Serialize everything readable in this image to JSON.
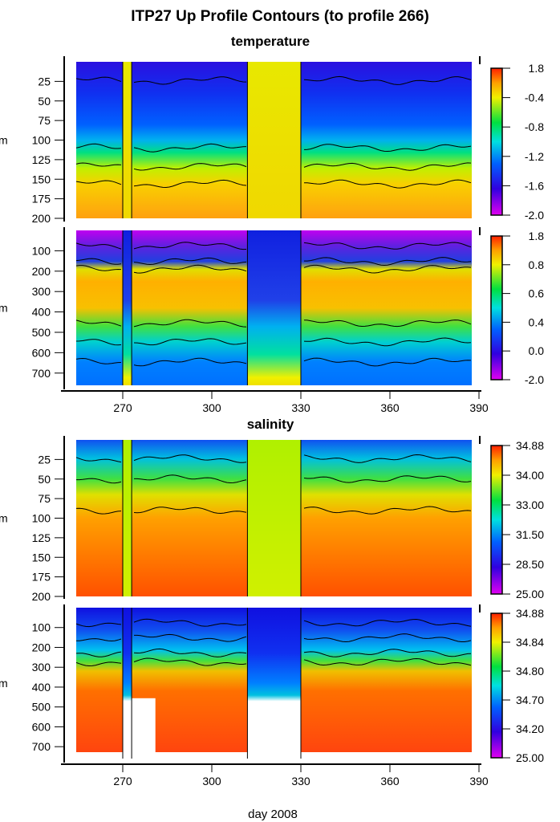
{
  "title": "ITP27 Up Profile Contours (to profile 266)",
  "xlabel": "day 2008",
  "chart_data": [
    {
      "type": "heatmap",
      "section_title": "temperature",
      "ylabel": "m",
      "yticks": [
        "25",
        "50",
        "75",
        "100",
        "125",
        "150",
        "175",
        "200"
      ],
      "ylim": [
        0,
        200
      ],
      "xlim": [
        255,
        390
      ],
      "xticks": [],
      "colorbar_ticks": [
        "1.8",
        "-0.4",
        "-0.8",
        "-1.2",
        "-1.6",
        "-2.0"
      ],
      "grid": false
    },
    {
      "type": "heatmap",
      "ylabel": "m",
      "yticks": [
        "100",
        "200",
        "300",
        "400",
        "500",
        "600",
        "700"
      ],
      "ylim": [
        0,
        760
      ],
      "xlim": [
        255,
        390
      ],
      "xticks": [
        "270",
        "300",
        "330",
        "360",
        "390"
      ],
      "colorbar_ticks": [
        "1.8",
        "0.8",
        "0.6",
        "0.4",
        "0.0",
        "-2.0"
      ],
      "grid": false
    },
    {
      "type": "heatmap",
      "section_title": "salinity",
      "ylabel": "m",
      "yticks": [
        "25",
        "50",
        "75",
        "100",
        "125",
        "150",
        "175",
        "200"
      ],
      "ylim": [
        0,
        200
      ],
      "xlim": [
        255,
        390
      ],
      "xticks": [],
      "colorbar_ticks": [
        "34.88",
        "34.00",
        "33.00",
        "31.50",
        "28.50",
        "25.00"
      ],
      "grid": false
    },
    {
      "type": "heatmap",
      "ylabel": "m",
      "yticks": [
        "100",
        "200",
        "300",
        "400",
        "500",
        "600",
        "700"
      ],
      "ylim": [
        0,
        760
      ],
      "xlim": [
        255,
        390
      ],
      "xticks": [
        "270",
        "300",
        "330",
        "360",
        "390"
      ],
      "colorbar_ticks": [
        "34.88",
        "34.84",
        "34.80",
        "34.70",
        "34.20",
        "25.00"
      ],
      "grid": false
    }
  ]
}
